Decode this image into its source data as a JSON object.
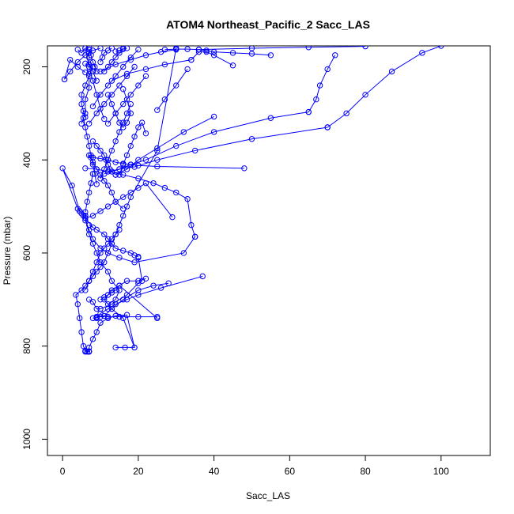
{
  "chart_data": {
    "type": "line",
    "title": "ATOM4 Northeast_Pacific_2 Sacc_LAS",
    "xlabel": "Sacc_LAS",
    "ylabel": "Pressure (mbar)",
    "xlim": [
      -4,
      113
    ],
    "ylim": [
      1035,
      155
    ],
    "y_inverted": true,
    "xticks": [
      0,
      20,
      40,
      60,
      80,
      100
    ],
    "yticks": [
      200,
      400,
      600,
      800,
      1000
    ],
    "grid": false,
    "legend": "none",
    "series_color": "#0000ff",
    "marker": "open-circle",
    "profiles": [
      {
        "x": [
          7,
          6.5,
          6,
          7,
          6,
          5.5,
          5,
          4.5,
          4,
          3.5,
          5,
          6,
          7,
          8,
          9,
          10,
          11,
          12,
          13,
          14,
          15,
          16,
          17,
          18,
          25,
          30
        ],
        "y": [
          812,
          812,
          812,
          811,
          810,
          800,
          770,
          740,
          710,
          690,
          680,
          670,
          660,
          650,
          640,
          630,
          620,
          600,
          580,
          560,
          540,
          520,
          500,
          480,
          380,
          160
        ]
      },
      {
        "x": [
          7,
          7,
          8,
          9,
          10,
          12,
          14,
          17,
          19
        ],
        "y": [
          812,
          803,
          785,
          770,
          750,
          740,
          735,
          733,
          803
        ]
      },
      {
        "x": [
          14,
          16.5,
          19,
          16,
          13,
          11,
          12,
          13,
          15,
          25
        ],
        "y": [
          803,
          803,
          803,
          740,
          720,
          700,
          690,
          680,
          670,
          740
        ]
      },
      {
        "x": [
          8,
          9,
          10,
          12,
          15,
          20,
          25
        ],
        "y": [
          740,
          738,
          737,
          737,
          737,
          737,
          737
        ]
      },
      {
        "x": [
          9,
          11,
          13,
          16,
          20,
          24,
          28
        ],
        "y": [
          737,
          735,
          720,
          700,
          680,
          670,
          665
        ]
      },
      {
        "x": [
          9,
          10,
          12,
          14,
          17,
          20,
          26,
          37
        ],
        "y": [
          740,
          730,
          720,
          710,
          700,
          690,
          675,
          650
        ]
      },
      {
        "x": [
          10,
          11,
          12,
          13,
          14,
          15,
          17,
          20,
          22
        ],
        "y": [
          700,
          695,
          690,
          685,
          680,
          670,
          660,
          660,
          655
        ]
      },
      {
        "x": [
          12,
          14,
          15,
          13,
          12,
          10,
          9,
          8,
          7,
          6
        ],
        "y": [
          710,
          700,
          680,
          660,
          640,
          620,
          600,
          580,
          560,
          520
        ]
      },
      {
        "x": [
          6,
          7,
          8,
          9,
          10,
          11,
          12,
          13,
          14,
          15
        ],
        "y": [
          680,
          660,
          640,
          620,
          600,
          590,
          580,
          570,
          560,
          550
        ]
      },
      {
        "x": [
          7,
          8,
          9,
          10,
          13,
          17,
          20,
          21,
          20
        ],
        "y": [
          700,
          705,
          720,
          720,
          710,
          690,
          665,
          660,
          610
        ]
      },
      {
        "x": [
          20,
          19,
          18,
          16,
          14,
          13,
          12,
          11,
          9,
          7
        ],
        "y": [
          608,
          605,
          600,
          595,
          590,
          580,
          570,
          560,
          550,
          540
        ]
      },
      {
        "x": [
          6,
          6,
          7,
          8,
          10,
          12,
          15,
          19,
          32,
          35
        ],
        "y": [
          520,
          530,
          550,
          570,
          590,
          600,
          610,
          620,
          600,
          565
        ]
      },
      {
        "x": [
          35,
          34,
          33,
          30,
          27,
          24,
          20,
          16,
          12,
          9,
          6
        ],
        "y": [
          565,
          540,
          484,
          470,
          460,
          450,
          440,
          432,
          425,
          420,
          418
        ]
      },
      {
        "x": [
          6,
          5.5,
          5,
          4.5,
          4,
          0,
          2.5,
          4.5,
          6,
          8
        ],
        "y": [
          525,
          520,
          515,
          510,
          505,
          418,
          455,
          510,
          525,
          545
        ]
      },
      {
        "x": [
          6,
          8,
          10,
          12,
          14,
          16,
          18,
          20,
          22,
          29
        ],
        "y": [
          525,
          520,
          510,
          500,
          490,
          480,
          470,
          460,
          450,
          523
        ]
      },
      {
        "x": [
          16,
          14,
          13,
          12,
          11,
          10,
          9,
          8,
          7.5,
          7
        ],
        "y": [
          505,
          490,
          470,
          455,
          445,
          432,
          420,
          405,
          395,
          390
        ]
      },
      {
        "x": [
          8,
          10,
          12,
          14,
          16,
          18,
          20,
          25,
          48
        ],
        "y": [
          395,
          397,
          400,
          405,
          408,
          410,
          412,
          414,
          418
        ]
      },
      {
        "x": [
          12,
          15,
          19,
          25,
          35,
          50,
          70
        ],
        "y": [
          425,
          420,
          415,
          400,
          380,
          355,
          330
        ]
      },
      {
        "x": [
          11,
          13,
          15,
          18,
          22,
          30,
          40,
          55,
          65
        ],
        "y": [
          430,
          425,
          420,
          410,
          400,
          370,
          340,
          310,
          297
        ]
      },
      {
        "x": [
          14,
          17,
          20,
          25,
          32,
          40
        ],
        "y": [
          432,
          420,
          400,
          375,
          340,
          307
        ]
      },
      {
        "x": [
          14,
          13,
          12.5,
          12,
          11.5,
          11,
          10,
          9,
          8
        ],
        "y": [
          432,
          425,
          420,
          410,
          400,
          390,
          380,
          370,
          360
        ]
      },
      {
        "x": [
          15,
          16,
          17,
          18,
          19,
          20,
          21,
          22
        ],
        "y": [
          432,
          410,
          390,
          370,
          350,
          330,
          320,
          343
        ]
      },
      {
        "x": [
          10,
          11,
          12,
          13,
          14,
          15,
          16,
          17,
          18
        ],
        "y": [
          440,
          420,
          400,
          380,
          360,
          340,
          320,
          300,
          280
        ]
      },
      {
        "x": [
          9,
          8.5,
          8,
          7.5,
          7,
          6.5,
          6,
          5.5
        ],
        "y": [
          452,
          430,
          410,
          390,
          370,
          350,
          330,
          310
        ]
      },
      {
        "x": [
          6,
          6.5,
          7,
          7.5,
          8
        ],
        "y": [
          512,
          490,
          470,
          450,
          430
        ]
      },
      {
        "x": [
          6,
          5.5,
          5,
          5,
          6,
          7,
          8
        ],
        "y": [
          308,
          295,
          280,
          260,
          240,
          220,
          200
        ]
      },
      {
        "x": [
          5,
          6,
          6,
          7,
          7,
          6
        ],
        "y": [
          322,
          300,
          270,
          245,
          215,
          193
        ]
      },
      {
        "x": [
          7,
          9,
          11,
          13,
          15,
          17,
          19
        ],
        "y": [
          322,
          300,
          280,
          260,
          240,
          220,
          200
        ]
      },
      {
        "x": [
          12,
          14,
          16,
          18,
          20,
          22
        ],
        "y": [
          322,
          300,
          280,
          260,
          240,
          220
        ]
      },
      {
        "x": [
          11,
          10,
          9,
          8,
          7,
          6
        ],
        "y": [
          312,
          290,
          260,
          230,
          200,
          160
        ]
      },
      {
        "x": [
          16,
          17,
          18,
          17,
          16,
          15,
          14,
          13,
          12
        ],
        "y": [
          248,
          270,
          300,
          320,
          330,
          320,
          300,
          280,
          260
        ]
      },
      {
        "x": [
          8,
          10,
          12,
          14,
          16,
          18,
          20
        ],
        "y": [
          285,
          260,
          240,
          220,
          200,
          180,
          163
        ]
      },
      {
        "x": [
          11,
          12,
          13,
          14,
          15,
          16
        ],
        "y": [
          210,
          200,
          190,
          180,
          170,
          160
        ]
      },
      {
        "x": [
          0.5,
          2,
          4,
          6,
          8,
          10
        ],
        "y": [
          227,
          210,
          190,
          175,
          165,
          160
        ]
      },
      {
        "x": [
          6,
          4,
          2,
          0.5
        ],
        "y": [
          212,
          200,
          185,
          227
        ]
      },
      {
        "x": [
          9,
          8,
          7,
          7,
          7,
          7
        ],
        "y": [
          230,
          210,
          195,
          180,
          170,
          163
        ]
      },
      {
        "x": [
          10,
          14,
          18,
          22,
          26,
          30
        ],
        "y": [
          210,
          195,
          185,
          175,
          168,
          163
        ]
      },
      {
        "x": [
          13,
          17,
          22,
          27,
          34
        ],
        "y": [
          230,
          215,
          205,
          195,
          185
        ]
      },
      {
        "x": [
          25,
          27,
          30,
          33
        ],
        "y": [
          293,
          270,
          240,
          205
        ]
      },
      {
        "x": [
          34,
          36,
          38,
          40,
          45
        ],
        "y": [
          185,
          168,
          168,
          175,
          197
        ]
      },
      {
        "x": [
          36,
          40,
          45,
          50,
          55
        ],
        "y": [
          163,
          168,
          170,
          172,
          175
        ]
      },
      {
        "x": [
          65,
          67,
          68,
          70,
          72
        ],
        "y": [
          297,
          270,
          240,
          205,
          175
        ]
      },
      {
        "x": [
          70,
          75,
          80,
          87,
          95,
          100
        ],
        "y": [
          330,
          300,
          260,
          210,
          170,
          155
        ]
      },
      {
        "x": [
          36,
          50,
          65,
          80
        ],
        "y": [
          163,
          160,
          158,
          156
        ]
      },
      {
        "x": [
          27,
          30,
          33,
          36,
          38
        ],
        "y": [
          163,
          162,
          162,
          163,
          165
        ]
      },
      {
        "x": [
          4,
          5,
          6,
          7
        ],
        "y": [
          163,
          170,
          160,
          158
        ]
      },
      {
        "x": [
          7,
          7.5,
          8,
          8.5,
          9
        ],
        "y": [
          163,
          175,
          190,
          200,
          210
        ]
      },
      {
        "x": [
          10,
          10.5,
          11,
          12,
          13
        ],
        "y": [
          190,
          180,
          170,
          165,
          160
        ]
      },
      {
        "x": [
          14,
          15,
          16,
          17
        ],
        "y": [
          167,
          165,
          162,
          160
        ]
      }
    ]
  }
}
